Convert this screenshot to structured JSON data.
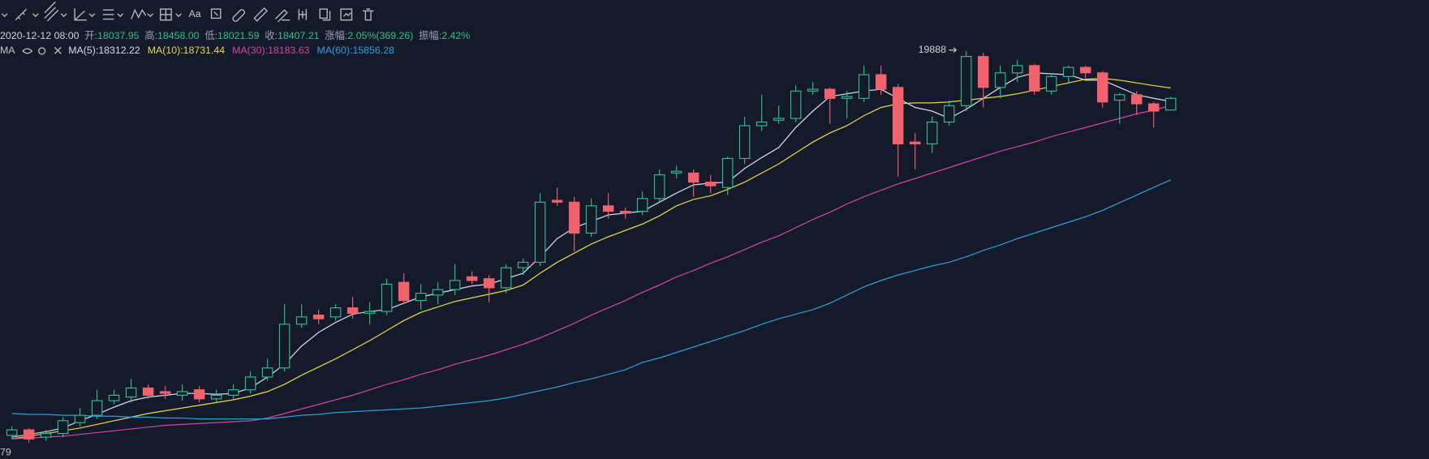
{
  "toolbar": {
    "text_tool": "Aa"
  },
  "info": {
    "date": "2020-12-12 08:00",
    "open_label": "开:",
    "open": "18037.95",
    "high_label": "高:",
    "high": "18458.00",
    "low_label": "低:",
    "low": "18021.59",
    "close_label": "收:",
    "close": "18407.21",
    "change_label": "涨幅:",
    "change": "2.05%(369.26)",
    "amplitude_label": "振幅:",
    "amplitude": "2.42%"
  },
  "chart_data": {
    "type": "candlestick",
    "ylim": [
      7120,
      20629
    ],
    "up_color": "#2fbf8f",
    "down_color": "#f0626d",
    "axis_label": "79",
    "legend_title": "MA",
    "legend_separator": ":",
    "open": [
      7861,
      8032,
      7804,
      7918,
      8260,
      8488,
      8944,
      9058,
      9343,
      9229,
      9115,
      9286,
      9001,
      9115,
      9286,
      9685,
      9970,
      11338,
      11623,
      11566,
      11851,
      11680,
      11737,
      12649,
      12079,
      12250,
      12421,
      12820,
      12763,
      12478,
      13105,
      13276,
      15214,
      15157,
      14188,
      15043,
      14872,
      14872,
      15271,
      16069,
      16069,
      15784,
      15613,
      16525,
      17551,
      17722,
      17779,
      18634,
      18691,
      18406,
      18406,
      19147,
      18748,
      17038,
      16981,
      17665,
      18178,
      19717,
      18748,
      19204,
      19432,
      18634,
      19090,
      19375,
      19204,
      18349,
      18520,
      18235,
      18037.95
    ],
    "high": [
      8146,
      8089,
      8032,
      8431,
      8716,
      9286,
      9286,
      9628,
      9457,
      9400,
      9457,
      9400,
      9286,
      9457,
      9856,
      10255,
      11965,
      11965,
      11794,
      11965,
      12193,
      12022,
      12763,
      12934,
      12592,
      12649,
      13219,
      12991,
      12877,
      13219,
      13390,
      15442,
      15613,
      15328,
      15271,
      15442,
      14986,
      15499,
      16183,
      16297,
      16183,
      16012,
      16582,
      17836,
      18520,
      18178,
      18805,
      18919,
      18748,
      18634,
      19432,
      19432,
      18862,
      17323,
      17836,
      18349,
      19888,
      19831,
      19432,
      19603,
      19489,
      19204,
      19432,
      19432,
      19261,
      18577,
      18634,
      18292,
      18458.0
    ],
    "low": [
      7747,
      7633,
      7690,
      7804,
      8146,
      8374,
      8830,
      8887,
      9001,
      9001,
      8944,
      8887,
      8887,
      9001,
      9172,
      9571,
      9856,
      11224,
      11338,
      11452,
      11509,
      11338,
      11623,
      11965,
      11794,
      11965,
      12250,
      12592,
      12022,
      12307,
      12877,
      13162,
      15043,
      13618,
      14074,
      14644,
      14644,
      14758,
      15157,
      15898,
      15328,
      15442,
      15385,
      16354,
      17380,
      17608,
      17665,
      18520,
      17608,
      17779,
      18292,
      18520,
      15955,
      16183,
      16696,
      17551,
      18007,
      18121,
      18406,
      18919,
      18520,
      18520,
      18862,
      19033,
      18121,
      17608,
      17893,
      17494,
      18021.59
    ],
    "close": [
      8032,
      7747,
      7918,
      8317,
      8488,
      8944,
      9115,
      9343,
      9115,
      9172,
      9229,
      9001,
      9115,
      9286,
      9685,
      9970,
      11338,
      11566,
      11509,
      11851,
      11680,
      11737,
      12592,
      12079,
      12307,
      12421,
      12706,
      12706,
      12478,
      13105,
      13276,
      15157,
      15157,
      14188,
      15043,
      14872,
      14815,
      15271,
      16012,
      16126,
      15784,
      15670,
      16525,
      17551,
      17665,
      17779,
      18634,
      18691,
      18406,
      18463,
      19147,
      18691,
      16981,
      16981,
      17665,
      18178,
      19717,
      18748,
      19204,
      19432,
      18634,
      19090,
      19375,
      19204,
      18292,
      18520,
      18235,
      18007,
      18407.21
    ],
    "series": [
      {
        "name": "MA(5)",
        "color": "#d9d8f0",
        "values": [
          7804,
          7890,
          7975,
          8089,
          8317,
          8516,
          8744,
          8944,
          9058,
          9115,
          9172,
          9172,
          9144,
          9172,
          9343,
          9685,
          10084,
          10654,
          11082,
          11395,
          11652,
          11737,
          11794,
          11994,
          12193,
          12307,
          12421,
          12535,
          12592,
          12763,
          12934,
          13447,
          14017,
          14359,
          14558,
          14758,
          14815,
          14872,
          15157,
          15442,
          15698,
          15756,
          15784,
          16212,
          16554,
          16867,
          17494,
          18007,
          18463,
          18548,
          18634,
          18691,
          18406,
          18121,
          18007,
          17779,
          18064,
          18406,
          18748,
          19062,
          19204,
          19176,
          19147,
          18976,
          18976,
          18748,
          18520,
          18406,
          18312.22
        ]
      },
      {
        "name": "MA(10)",
        "color": "#e6d84b",
        "values": [
          7747,
          7833,
          7918,
          8004,
          8089,
          8203,
          8317,
          8431,
          8545,
          8630,
          8716,
          8802,
          8887,
          8973,
          9086,
          9229,
          9457,
          9742,
          9998,
          10255,
          10540,
          10825,
          11139,
          11452,
          11708,
          11879,
          12050,
          12164,
          12278,
          12392,
          12564,
          12934,
          13276,
          13561,
          13846,
          14074,
          14274,
          14473,
          14730,
          15043,
          15242,
          15356,
          15556,
          15784,
          16069,
          16354,
          16696,
          17038,
          17323,
          17551,
          17865,
          18121,
          18235,
          18264,
          18264,
          18292,
          18349,
          18406,
          18463,
          18548,
          18662,
          18776,
          18890,
          19004,
          19033,
          18976,
          18890,
          18805,
          18731.44
        ]
      },
      {
        "name": "MA(30)",
        "color": "#d444a8",
        "values": [
          7747,
          7776,
          7804,
          7833,
          7890,
          7947,
          8004,
          8061,
          8118,
          8175,
          8203,
          8232,
          8260,
          8289,
          8317,
          8402,
          8545,
          8688,
          8830,
          8973,
          9115,
          9286,
          9457,
          9600,
          9770,
          9913,
          10084,
          10226,
          10369,
          10540,
          10711,
          10911,
          11139,
          11367,
          11623,
          11851,
          12079,
          12336,
          12564,
          12820,
          13020,
          13248,
          13447,
          13675,
          13903,
          14103,
          14359,
          14615,
          14844,
          15100,
          15328,
          15528,
          15727,
          15898,
          16069,
          16240,
          16411,
          16582,
          16753,
          16896,
          17038,
          17209,
          17352,
          17494,
          17637,
          17779,
          17922,
          18036,
          18183.63
        ]
      },
      {
        "name": "MA(60)",
        "color": "#2c9fdb",
        "values": [
          8545,
          8516,
          8516,
          8488,
          8488,
          8459,
          8459,
          8431,
          8431,
          8402,
          8402,
          8374,
          8374,
          8374,
          8374,
          8374,
          8431,
          8488,
          8516,
          8573,
          8602,
          8630,
          8659,
          8687,
          8716,
          8773,
          8830,
          8887,
          8944,
          9029,
          9143,
          9257,
          9371,
          9514,
          9628,
          9770,
          9913,
          10141,
          10283,
          10454,
          10625,
          10796,
          10967,
          11139,
          11338,
          11509,
          11652,
          11794,
          11994,
          12250,
          12507,
          12706,
          12877,
          13020,
          13162,
          13276,
          13447,
          13647,
          13818,
          14017,
          14188,
          14359,
          14530,
          14701,
          14900,
          15140,
          15380,
          15620,
          15856.28
        ]
      }
    ]
  }
}
